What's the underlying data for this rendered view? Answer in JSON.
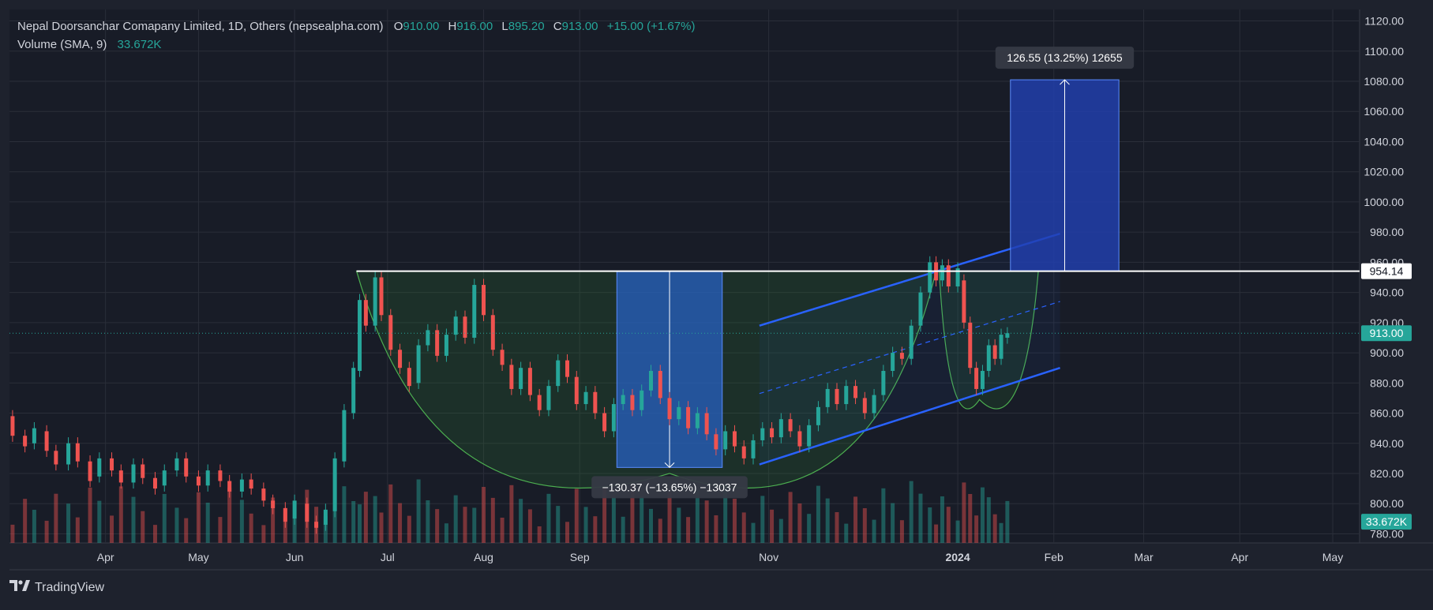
{
  "legend": {
    "symbol": "Nepal Doorsanchar Comapany Limited, 1D, Others (nepsealpha.com)",
    "o_label": "O",
    "o_value": "910.00",
    "h_label": "H",
    "h_value": "916.00",
    "l_label": "L",
    "l_value": "895.20",
    "c_label": "C",
    "c_value": "913.00",
    "change": "+15.00 (+1.67%)",
    "volume_label": "Volume (SMA, 9)",
    "volume_value": "33.672K"
  },
  "footer": {
    "brand": "TradingView",
    "logo_icon": "tradingview-logo-icon"
  },
  "colors": {
    "bg": "#1e222d",
    "up": "#26a69a",
    "down": "#ef5350",
    "blue": "#2962ff",
    "measure": "#1e3a8a"
  },
  "chart_data": {
    "type": "candlestick",
    "title": "Nepal Doorsanchar Comapany Limited, 1D, Others (nepsealpha.com)",
    "ylim": [
      780,
      1125
    ],
    "y_ticks": [
      "1120.00",
      "1100.00",
      "1080.00",
      "1060.00",
      "1040.00",
      "1020.00",
      "1000.00",
      "980.00",
      "960.00",
      "940.00",
      "920.00",
      "900.00",
      "880.00",
      "860.00",
      "840.00",
      "820.00",
      "800.00",
      "780.00"
    ],
    "x_ticks": [
      {
        "label": "Apr",
        "date": "2023-04-01"
      },
      {
        "label": "May",
        "date": "2023-05-01"
      },
      {
        "label": "Jun",
        "date": "2023-06-01"
      },
      {
        "label": "Jul",
        "date": "2023-07-01"
      },
      {
        "label": "Aug",
        "date": "2023-08-01"
      },
      {
        "label": "Sep",
        "date": "2023-09-01"
      },
      {
        "label": "Nov",
        "date": "2023-11-01"
      },
      {
        "label": "2024",
        "date": "2024-01-01"
      },
      {
        "label": "Feb",
        "date": "2024-02-01"
      },
      {
        "label": "Mar",
        "date": "2024-03-01"
      },
      {
        "label": "Apr",
        "date": "2024-04-01"
      },
      {
        "label": "May",
        "date": "2024-05-01"
      }
    ],
    "price_badges": [
      {
        "label": "954.14",
        "value": 954.14,
        "style": "white"
      },
      {
        "label": "913.00",
        "value": 913.0,
        "style": "green"
      },
      {
        "label": "33.672K",
        "value": 788,
        "style": "green"
      }
    ],
    "horizontal_levels": [
      {
        "value": 954.14,
        "from": "2023-06-21",
        "to": "2024-05-31"
      }
    ],
    "dotted_level": {
      "value": 913.0
    },
    "cup_outline": {
      "from": "2023-06-21",
      "bottom_date": "2023-09-30",
      "bottom_value": 820,
      "to": "2023-12-25",
      "rim": 954.14
    },
    "handle_outline": {
      "from": "2023-12-26",
      "bottom_date": "2024-01-08",
      "bottom_value": 869,
      "to": "2024-01-27",
      "rim": 954.14
    },
    "channel": {
      "upper": {
        "start": [
          "2023-10-29",
          918
        ],
        "end": [
          "2024-02-03",
          979
        ]
      },
      "middle": {
        "start": [
          "2023-10-29",
          873
        ],
        "end": [
          "2024-02-03",
          934
        ]
      },
      "lower": {
        "start": [
          "2023-10-29",
          826
        ],
        "end": [
          "2024-02-03",
          890
        ]
      }
    },
    "measures": [
      {
        "label": "−130.37 (−13.65%) −13037",
        "from_date": "2023-09-13",
        "to_date": "2023-10-17",
        "top": 954.14,
        "bottom": 824.0,
        "direction": "down"
      },
      {
        "label": "126.55 (13.25%) 12655",
        "from_date": "2024-01-18",
        "to_date": "2024-02-22",
        "top": 1081.0,
        "bottom": 954.14,
        "direction": "up"
      }
    ],
    "candles": [
      {
        "d": "2023-03-02",
        "o": 858,
        "c": 845
      },
      {
        "d": "2023-03-06",
        "o": 845,
        "c": 838
      },
      {
        "d": "2023-03-09",
        "o": 840,
        "c": 850
      },
      {
        "d": "2023-03-13",
        "o": 848,
        "c": 835
      },
      {
        "d": "2023-03-16",
        "o": 835,
        "c": 826
      },
      {
        "d": "2023-03-20",
        "o": 826,
        "c": 840
      },
      {
        "d": "2023-03-23",
        "o": 840,
        "c": 828
      },
      {
        "d": "2023-03-27",
        "o": 828,
        "c": 815
      },
      {
        "d": "2023-03-30",
        "o": 818,
        "c": 830
      },
      {
        "d": "2023-04-03",
        "o": 830,
        "c": 822
      },
      {
        "d": "2023-04-06",
        "o": 822,
        "c": 814
      },
      {
        "d": "2023-04-10",
        "o": 814,
        "c": 826
      },
      {
        "d": "2023-04-13",
        "o": 826,
        "c": 817
      },
      {
        "d": "2023-04-17",
        "o": 817,
        "c": 810
      },
      {
        "d": "2023-04-20",
        "o": 812,
        "c": 822
      },
      {
        "d": "2023-04-24",
        "o": 822,
        "c": 830
      },
      {
        "d": "2023-04-27",
        "o": 830,
        "c": 818
      },
      {
        "d": "2023-05-01",
        "o": 818,
        "c": 812
      },
      {
        "d": "2023-05-04",
        "o": 812,
        "c": 822
      },
      {
        "d": "2023-05-08",
        "o": 822,
        "c": 815
      },
      {
        "d": "2023-05-11",
        "o": 815,
        "c": 808
      },
      {
        "d": "2023-05-15",
        "o": 808,
        "c": 816
      },
      {
        "d": "2023-05-18",
        "o": 816,
        "c": 810
      },
      {
        "d": "2023-05-22",
        "o": 810,
        "c": 802
      },
      {
        "d": "2023-05-25",
        "o": 802,
        "c": 797
      },
      {
        "d": "2023-05-29",
        "o": 797,
        "c": 788
      },
      {
        "d": "2023-06-01",
        "o": 790,
        "c": 802
      },
      {
        "d": "2023-06-05",
        "o": 800,
        "c": 788
      },
      {
        "d": "2023-06-08",
        "o": 788,
        "c": 784
      },
      {
        "d": "2023-06-11",
        "o": 786,
        "c": 796
      },
      {
        "d": "2023-06-14",
        "o": 795,
        "c": 830
      },
      {
        "d": "2023-06-17",
        "o": 828,
        "c": 862
      },
      {
        "d": "2023-06-20",
        "o": 860,
        "c": 890
      },
      {
        "d": "2023-06-22",
        "o": 888,
        "c": 935
      },
      {
        "d": "2023-06-24",
        "o": 935,
        "c": 918
      },
      {
        "d": "2023-06-27",
        "o": 918,
        "c": 950
      },
      {
        "d": "2023-06-29",
        "o": 950,
        "c": 925
      },
      {
        "d": "2023-07-02",
        "o": 925,
        "c": 902
      },
      {
        "d": "2023-07-05",
        "o": 902,
        "c": 890
      },
      {
        "d": "2023-07-08",
        "o": 890,
        "c": 878
      },
      {
        "d": "2023-07-11",
        "o": 880,
        "c": 905
      },
      {
        "d": "2023-07-14",
        "o": 905,
        "c": 915
      },
      {
        "d": "2023-07-17",
        "o": 915,
        "c": 898
      },
      {
        "d": "2023-07-20",
        "o": 898,
        "c": 912
      },
      {
        "d": "2023-07-23",
        "o": 912,
        "c": 924
      },
      {
        "d": "2023-07-26",
        "o": 924,
        "c": 910
      },
      {
        "d": "2023-07-29",
        "o": 910,
        "c": 945
      },
      {
        "d": "2023-08-01",
        "o": 945,
        "c": 925
      },
      {
        "d": "2023-08-04",
        "o": 925,
        "c": 902
      },
      {
        "d": "2023-08-07",
        "o": 902,
        "c": 892
      },
      {
        "d": "2023-08-10",
        "o": 892,
        "c": 876
      },
      {
        "d": "2023-08-13",
        "o": 876,
        "c": 890
      },
      {
        "d": "2023-08-16",
        "o": 890,
        "c": 872
      },
      {
        "d": "2023-08-19",
        "o": 872,
        "c": 862
      },
      {
        "d": "2023-08-22",
        "o": 862,
        "c": 878
      },
      {
        "d": "2023-08-25",
        "o": 878,
        "c": 895
      },
      {
        "d": "2023-08-28",
        "o": 895,
        "c": 884
      },
      {
        "d": "2023-08-31",
        "o": 884,
        "c": 866
      },
      {
        "d": "2023-09-03",
        "o": 866,
        "c": 874
      },
      {
        "d": "2023-09-06",
        "o": 874,
        "c": 860
      },
      {
        "d": "2023-09-09",
        "o": 860,
        "c": 848
      },
      {
        "d": "2023-09-12",
        "o": 848,
        "c": 866
      },
      {
        "d": "2023-09-15",
        "o": 866,
        "c": 872
      },
      {
        "d": "2023-09-18",
        "o": 872,
        "c": 862
      },
      {
        "d": "2023-09-21",
        "o": 862,
        "c": 875
      },
      {
        "d": "2023-09-24",
        "o": 875,
        "c": 888
      },
      {
        "d": "2023-09-27",
        "o": 888,
        "c": 870
      },
      {
        "d": "2023-09-30",
        "o": 870,
        "c": 856
      },
      {
        "d": "2023-10-03",
        "o": 856,
        "c": 864
      },
      {
        "d": "2023-10-06",
        "o": 864,
        "c": 850
      },
      {
        "d": "2023-10-09",
        "o": 850,
        "c": 860
      },
      {
        "d": "2023-10-12",
        "o": 860,
        "c": 846
      },
      {
        "d": "2023-10-15",
        "o": 846,
        "c": 836
      },
      {
        "d": "2023-10-18",
        "o": 836,
        "c": 848
      },
      {
        "d": "2023-10-21",
        "o": 848,
        "c": 838
      },
      {
        "d": "2023-10-24",
        "o": 838,
        "c": 830
      },
      {
        "d": "2023-10-27",
        "o": 830,
        "c": 842
      },
      {
        "d": "2023-10-30",
        "o": 842,
        "c": 850
      },
      {
        "d": "2023-11-02",
        "o": 850,
        "c": 844
      },
      {
        "d": "2023-11-05",
        "o": 844,
        "c": 856
      },
      {
        "d": "2023-11-08",
        "o": 856,
        "c": 848
      },
      {
        "d": "2023-11-11",
        "o": 848,
        "c": 838
      },
      {
        "d": "2023-11-14",
        "o": 838,
        "c": 852
      },
      {
        "d": "2023-11-17",
        "o": 852,
        "c": 864
      },
      {
        "d": "2023-11-20",
        "o": 864,
        "c": 876
      },
      {
        "d": "2023-11-23",
        "o": 876,
        "c": 866
      },
      {
        "d": "2023-11-26",
        "o": 866,
        "c": 878
      },
      {
        "d": "2023-11-29",
        "o": 878,
        "c": 870
      },
      {
        "d": "2023-12-02",
        "o": 870,
        "c": 860
      },
      {
        "d": "2023-12-05",
        "o": 860,
        "c": 872
      },
      {
        "d": "2023-12-08",
        "o": 872,
        "c": 888
      },
      {
        "d": "2023-12-11",
        "o": 888,
        "c": 900
      },
      {
        "d": "2023-12-14",
        "o": 900,
        "c": 896
      },
      {
        "d": "2023-12-17",
        "o": 896,
        "c": 918
      },
      {
        "d": "2023-12-20",
        "o": 918,
        "c": 940
      },
      {
        "d": "2023-12-23",
        "o": 940,
        "c": 960
      },
      {
        "d": "2023-12-25",
        "o": 960,
        "c": 948
      },
      {
        "d": "2023-12-27",
        "o": 948,
        "c": 958
      },
      {
        "d": "2023-12-29",
        "o": 958,
        "c": 944
      },
      {
        "d": "2024-01-01",
        "o": 944,
        "c": 956
      },
      {
        "d": "2024-01-03",
        "o": 948,
        "c": 920
      },
      {
        "d": "2024-01-05",
        "o": 920,
        "c": 890
      },
      {
        "d": "2024-01-07",
        "o": 890,
        "c": 876
      },
      {
        "d": "2024-01-09",
        "o": 876,
        "c": 888
      },
      {
        "d": "2024-01-11",
        "o": 888,
        "c": 905
      },
      {
        "d": "2024-01-13",
        "o": 905,
        "c": 896
      },
      {
        "d": "2024-01-15",
        "o": 896,
        "c": 912
      },
      {
        "d": "2024-01-17",
        "o": 910,
        "c": 913
      }
    ]
  }
}
